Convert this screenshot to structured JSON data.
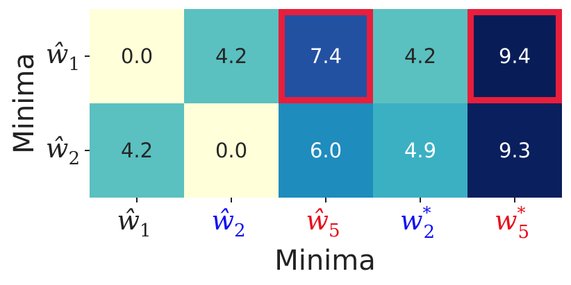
{
  "chart_data": {
    "type": "heatmap",
    "xlabel": "Minima",
    "ylabel": "Minima",
    "x_categories": [
      {
        "base": "ŵ",
        "sub": "1",
        "sup": "",
        "color": "#222222"
      },
      {
        "base": "ŵ",
        "sub": "2",
        "sup": "",
        "color": "#1010f0"
      },
      {
        "base": "ŵ",
        "sub": "5",
        "sup": "",
        "color": "#e8101e"
      },
      {
        "base": "w",
        "sub": "2",
        "sup": "*",
        "color": "#1010f0"
      },
      {
        "base": "w",
        "sub": "5",
        "sup": "*",
        "color": "#e8101e"
      }
    ],
    "y_categories": [
      {
        "base": "ŵ",
        "sub": "1",
        "sup": "",
        "color": "#222222"
      },
      {
        "base": "ŵ",
        "sub": "2",
        "sup": "",
        "color": "#222222"
      }
    ],
    "values": [
      [
        0.0,
        4.2,
        7.4,
        4.2,
        9.4
      ],
      [
        4.2,
        0.0,
        6.0,
        4.9,
        9.3
      ]
    ],
    "value_labels": [
      [
        "0.0",
        "4.2",
        "7.4",
        "4.2",
        "9.4"
      ],
      [
        "4.2",
        "0.0",
        "6.0",
        "4.9",
        "9.3"
      ]
    ],
    "colormap": "YlGnBu",
    "vmin": 0.0,
    "vmax": 9.4,
    "grid": false,
    "colorbar": false,
    "highlighted_cells": [
      {
        "row": 0,
        "col": 2
      },
      {
        "row": 0,
        "col": 4
      }
    ],
    "highlight_color": "#e81e3c"
  }
}
